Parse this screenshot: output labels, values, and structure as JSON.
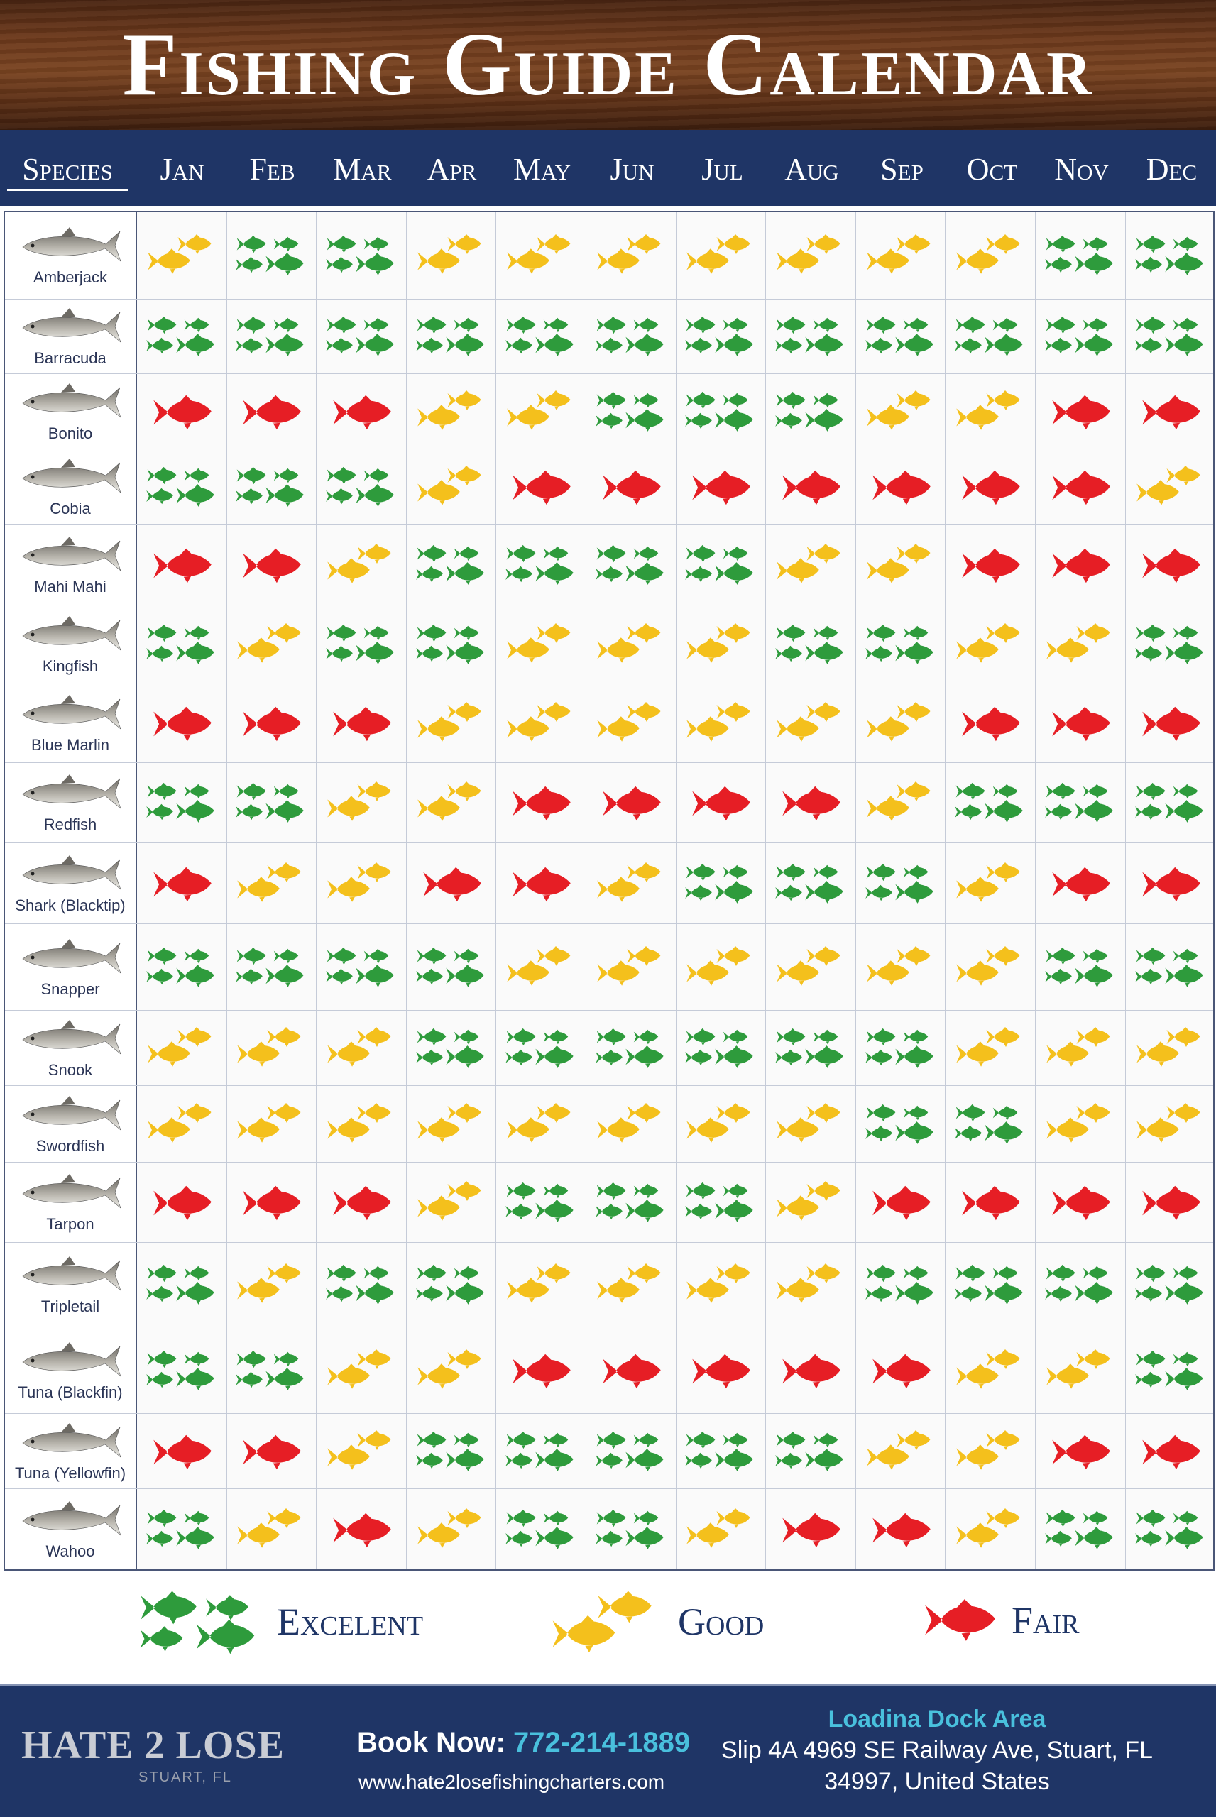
{
  "title": "Fishing Guide Calendar",
  "header": {
    "species_label": "Species",
    "months": [
      "Jan",
      "Feb",
      "Mar",
      "Apr",
      "May",
      "Jun",
      "Jul",
      "Aug",
      "Sep",
      "Oct",
      "Nov",
      "Dec"
    ]
  },
  "ratings_key": {
    "E": "excellent",
    "G": "good",
    "F": "fair"
  },
  "colors": {
    "excellent": "#2e9b3c",
    "good": "#f4c01c",
    "fair": "#e61e25",
    "navy": "#1f3566",
    "accent": "#49c0dd"
  },
  "species": [
    {
      "name": "Amberjack",
      "ratings": [
        "G",
        "E",
        "E",
        "G",
        "G",
        "G",
        "G",
        "G",
        "G",
        "G",
        "E",
        "E"
      ]
    },
    {
      "name": "Barracuda",
      "ratings": [
        "E",
        "E",
        "E",
        "E",
        "E",
        "E",
        "E",
        "E",
        "E",
        "E",
        "E",
        "E"
      ]
    },
    {
      "name": "Bonito",
      "ratings": [
        "F",
        "F",
        "F",
        "G",
        "G",
        "E",
        "E",
        "E",
        "G",
        "G",
        "F",
        "F"
      ]
    },
    {
      "name": "Cobia",
      "ratings": [
        "E",
        "E",
        "E",
        "G",
        "F",
        "F",
        "F",
        "F",
        "F",
        "F",
        "F",
        "G"
      ]
    },
    {
      "name": "Mahi Mahi",
      "ratings": [
        "F",
        "F",
        "G",
        "E",
        "E",
        "E",
        "E",
        "G",
        "G",
        "F",
        "F",
        "F"
      ]
    },
    {
      "name": "Kingfish",
      "ratings": [
        "E",
        "G",
        "E",
        "E",
        "G",
        "G",
        "G",
        "E",
        "E",
        "G",
        "G",
        "E"
      ]
    },
    {
      "name": "Blue Marlin",
      "ratings": [
        "F",
        "F",
        "F",
        "G",
        "G",
        "G",
        "G",
        "G",
        "G",
        "F",
        "F",
        "F"
      ]
    },
    {
      "name": "Redfish",
      "ratings": [
        "E",
        "E",
        "G",
        "G",
        "F",
        "F",
        "F",
        "F",
        "G",
        "E",
        "E",
        "E"
      ]
    },
    {
      "name": "Shark (Blacktip)",
      "ratings": [
        "F",
        "G",
        "G",
        "F",
        "F",
        "G",
        "E",
        "E",
        "E",
        "G",
        "F",
        "F"
      ]
    },
    {
      "name": "Snapper",
      "ratings": [
        "E",
        "E",
        "E",
        "E",
        "G",
        "G",
        "G",
        "G",
        "G",
        "G",
        "E",
        "E"
      ]
    },
    {
      "name": "Snook",
      "ratings": [
        "G",
        "G",
        "G",
        "E",
        "E",
        "E",
        "E",
        "E",
        "E",
        "G",
        "G",
        "G"
      ]
    },
    {
      "name": "Swordfish",
      "ratings": [
        "G",
        "G",
        "G",
        "G",
        "G",
        "G",
        "G",
        "G",
        "E",
        "E",
        "G",
        "G"
      ]
    },
    {
      "name": "Tarpon",
      "ratings": [
        "F",
        "F",
        "F",
        "G",
        "E",
        "E",
        "E",
        "G",
        "F",
        "F",
        "F",
        "F"
      ]
    },
    {
      "name": "Tripletail",
      "ratings": [
        "E",
        "G",
        "E",
        "E",
        "G",
        "G",
        "G",
        "G",
        "E",
        "E",
        "E",
        "E"
      ]
    },
    {
      "name": "Tuna (Blackfin)",
      "ratings": [
        "E",
        "E",
        "G",
        "G",
        "F",
        "F",
        "F",
        "F",
        "F",
        "G",
        "G",
        "E"
      ]
    },
    {
      "name": "Tuna (Yellowfin)",
      "ratings": [
        "F",
        "F",
        "G",
        "E",
        "E",
        "E",
        "E",
        "E",
        "G",
        "G",
        "F",
        "F"
      ]
    },
    {
      "name": "Wahoo",
      "ratings": [
        "E",
        "G",
        "F",
        "G",
        "E",
        "E",
        "G",
        "F",
        "F",
        "G",
        "E",
        "E"
      ]
    }
  ],
  "legend": {
    "excellent": "Excelent",
    "good": "Good",
    "fair": "Fair"
  },
  "footer": {
    "logo": "HATE 2 LOSE",
    "logo_sub": "STUART, FL",
    "book_label": "Book Now:",
    "phone": "772-214-1889",
    "website": "www.hate2losefishingcharters.com",
    "address_title": "Loadina Dock Area",
    "address_line1": "Slip 4A 4969 SE Railway Ave, Stuart, FL",
    "address_line2": "34997, United States"
  }
}
